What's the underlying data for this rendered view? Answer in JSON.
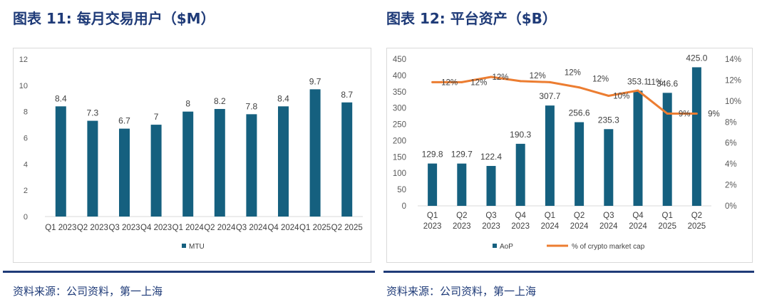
{
  "figures": [
    {
      "title": "图表 11: 每月交易用户（$M）",
      "source": "资料来源：公司资料，第一上海"
    },
    {
      "title": "图表 12: 平台资产（$B）",
      "source": "资料来源：公司资料，第一上海"
    }
  ],
  "colors": {
    "title": "#1f3b78",
    "bar": "#15607f",
    "line": "#ec7d31",
    "rule": "#1f3b78"
  },
  "chart_data": [
    {
      "type": "bar",
      "title": "",
      "categories": [
        "Q1 2023",
        "Q2 2023",
        "Q3 2023",
        "Q4 2023",
        "Q1 2024",
        "Q2 2024",
        "Q3 2024",
        "Q4 2024",
        "Q1 2025",
        "Q2 2025"
      ],
      "series": [
        {
          "name": "MTU",
          "values": [
            8.4,
            7.3,
            6.7,
            7,
            8,
            8.2,
            7.8,
            8.4,
            9.7,
            8.7
          ]
        }
      ],
      "data_labels": [
        "8.4",
        "7.3",
        "6.7",
        "7",
        "8",
        "8.2",
        "7.8",
        "8.4",
        "9.7",
        "8.7"
      ],
      "ylim": [
        0,
        12
      ],
      "yticks": [
        "0",
        "2",
        "4",
        "6",
        "8",
        "10",
        "12"
      ],
      "grid": false,
      "legend": "bottom"
    },
    {
      "type": "bar",
      "title": "",
      "categories": [
        "Q1 2023",
        "Q2 2023",
        "Q3 2023",
        "Q4 2023",
        "Q1 2024",
        "Q2 2024",
        "Q3 2024",
        "Q4 2024",
        "Q1 2025",
        "Q2 2025"
      ],
      "series": [
        {
          "name": "AoP",
          "type": "bar",
          "axis": "left",
          "values": [
            129.8,
            129.7,
            122.4,
            190.3,
            307.7,
            256.6,
            235.3,
            353.1,
            346.6,
            425.0
          ]
        },
        {
          "name": "% of crypto market cap",
          "type": "line",
          "axis": "right",
          "values": [
            12,
            12,
            12,
            12,
            12,
            12,
            10,
            11,
            9,
            9
          ]
        }
      ],
      "bar_labels": [
        "129.8",
        "129.7",
        "122.4",
        "190.3",
        "307.7",
        "256.6",
        "235.3",
        "353.1",
        "346.6",
        "425.0"
      ],
      "line_labels": [
        "12%",
        "12%",
        "12%",
        "12%",
        "12%",
        "12%",
        "10%",
        "11%",
        "9%",
        "9%"
      ],
      "ylim": [
        0,
        450
      ],
      "yticks": [
        "0",
        "50",
        "100",
        "150",
        "200",
        "250",
        "300",
        "350",
        "400",
        "450"
      ],
      "y2lim": [
        0,
        14
      ],
      "y2ticks": [
        "0%",
        "2%",
        "4%",
        "6%",
        "8%",
        "10%",
        "12%",
        "14%"
      ],
      "grid": false,
      "legend": "bottom"
    }
  ]
}
